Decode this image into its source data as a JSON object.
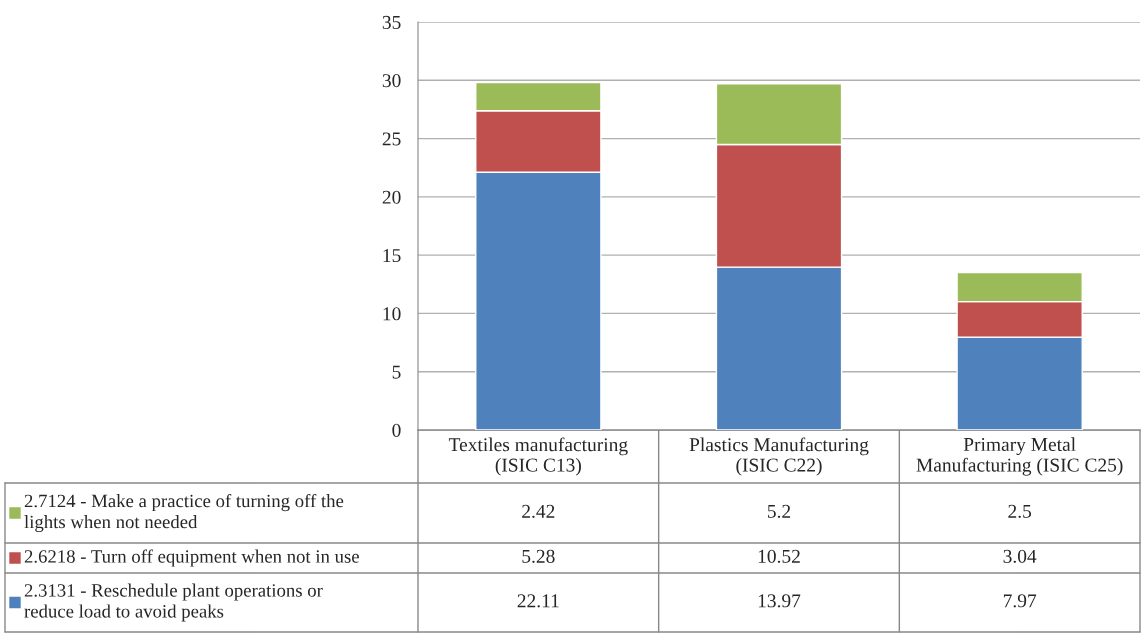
{
  "chart_data": {
    "type": "bar",
    "stacked": true,
    "data_labels": true,
    "grid": "y",
    "legend": "bottom",
    "categories": [
      "Textiles manufacturing\n(ISIC C13)",
      "Plastics Manufacturing\n(ISIC C22)",
      "Primary Metal\nManufacturing (ISIC C25)"
    ],
    "series": [
      {
        "name": "2.3131 - Reschedule plant operations or\nreduce load to avoid peaks",
        "color": "#4f81bd",
        "values": [
          22.11,
          13.97,
          7.97
        ]
      },
      {
        "name": "2.6218 - Turn off equipment when not in use",
        "color": "#c0504d",
        "values": [
          5.28,
          10.52,
          3.04
        ]
      },
      {
        "name": "2.7124 - Make a practice of turning off the\nlights when not needed",
        "color": "#9bbb59",
        "values": [
          2.42,
          5.2,
          2.5
        ]
      }
    ],
    "ylim": [
      0,
      35
    ],
    "yticks": [
      0,
      5,
      10,
      15,
      20,
      25,
      30,
      35
    ]
  }
}
